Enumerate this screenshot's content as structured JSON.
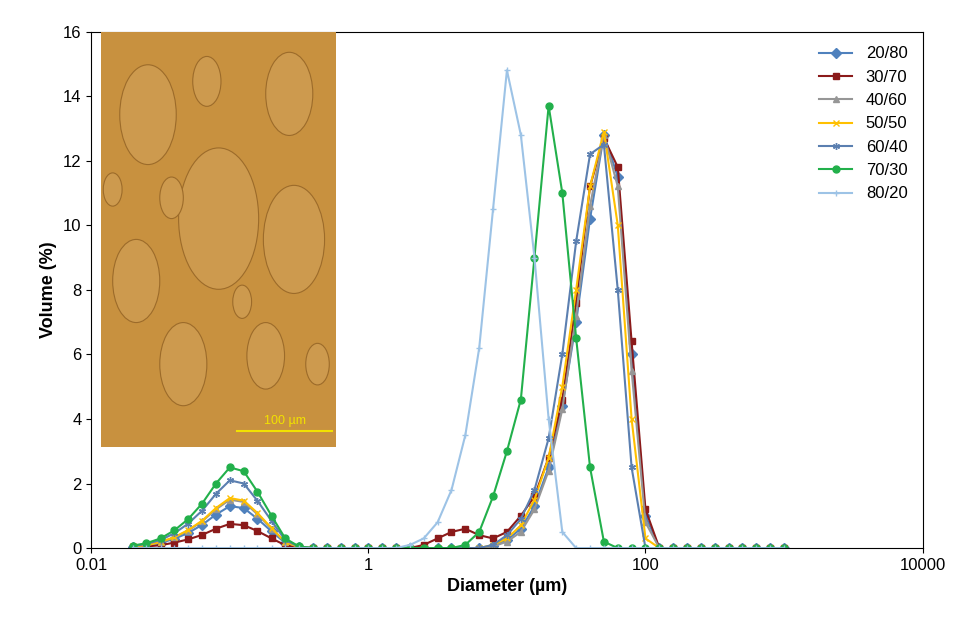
{
  "chart_data": {
    "type": "line",
    "x_label": "Diameter (µm)",
    "y_label": "Volume (%)",
    "annotations": [
      "100 µm"
    ],
    "log": "x",
    "grid": false,
    "legend": "upper right",
    "xlim": [
      0.01,
      10000
    ],
    "xticks": [
      0.01,
      1,
      100,
      10000
    ],
    "ylim": [
      0,
      16
    ],
    "yticks": [
      0,
      2,
      4,
      6,
      8,
      10,
      12,
      14,
      16
    ],
    "x": [
      0.02,
      0.025,
      0.0316,
      0.0398,
      0.0501,
      0.0631,
      0.0794,
      0.1,
      0.126,
      0.158,
      0.2,
      0.251,
      0.316,
      0.398,
      0.501,
      0.631,
      0.794,
      1,
      1.26,
      1.58,
      2,
      2.51,
      3.16,
      3.98,
      5.01,
      6.31,
      7.94,
      10,
      12.6,
      15.8,
      20,
      25.1,
      31.6,
      39.8,
      50.1,
      63.1,
      79.4,
      100,
      126,
      158,
      200,
      251,
      316,
      398,
      501,
      631,
      794,
      1000
    ],
    "series": [
      {
        "name": "20/80",
        "color": "#4F81BD",
        "marker": "diamond",
        "values": [
          0.04,
          0.08,
          0.16,
          0.29,
          0.47,
          0.72,
          1.04,
          1.3,
          1.24,
          0.91,
          0.52,
          0.16,
          0.03,
          0,
          0,
          0,
          0,
          0,
          0,
          0,
          0,
          0,
          0,
          0,
          0,
          0,
          0.05,
          0.25,
          0.6,
          1.3,
          2.5,
          4.4,
          7.0,
          10.2,
          12.8,
          11.5,
          6.0,
          1.0,
          0,
          0,
          0,
          0,
          0,
          0,
          0,
          0,
          0,
          0
        ]
      },
      {
        "name": "30/70",
        "color": "#8B1A1A",
        "marker": "square",
        "values": [
          0.02,
          0.05,
          0.09,
          0.17,
          0.27,
          0.41,
          0.6,
          0.75,
          0.71,
          0.53,
          0.3,
          0.09,
          0.02,
          0,
          0,
          0,
          0,
          0,
          0,
          0,
          0,
          0.1,
          0.3,
          0.5,
          0.6,
          0.4,
          0.3,
          0.5,
          1.0,
          1.6,
          2.8,
          4.6,
          7.6,
          11.2,
          12.7,
          11.8,
          6.4,
          1.2,
          0,
          0,
          0,
          0,
          0,
          0,
          0,
          0,
          0,
          0
        ]
      },
      {
        "name": "40/60",
        "color": "#969696",
        "marker": "triangle",
        "values": [
          0.05,
          0.09,
          0.18,
          0.33,
          0.54,
          0.83,
          1.2,
          1.5,
          1.43,
          1.05,
          0.6,
          0.18,
          0.03,
          0,
          0,
          0,
          0,
          0,
          0,
          0,
          0,
          0,
          0,
          0,
          0,
          0,
          0.05,
          0.2,
          0.5,
          1.2,
          2.4,
          4.3,
          7.2,
          10.6,
          12.8,
          11.2,
          5.5,
          0.8,
          0,
          0,
          0,
          0,
          0,
          0,
          0,
          0,
          0,
          0
        ]
      },
      {
        "name": "50/50",
        "color": "#FFC000",
        "marker": "x",
        "values": [
          0.05,
          0.09,
          0.19,
          0.34,
          0.56,
          0.85,
          1.24,
          1.55,
          1.47,
          1.09,
          0.62,
          0.19,
          0.03,
          0,
          0,
          0,
          0,
          0,
          0,
          0,
          0,
          0,
          0,
          0,
          0,
          0,
          0.1,
          0.3,
          0.7,
          1.5,
          2.8,
          5.0,
          8.0,
          11.2,
          12.9,
          10.0,
          4.0,
          0.3,
          0,
          0,
          0,
          0,
          0,
          0,
          0,
          0,
          0,
          0
        ]
      },
      {
        "name": "60/40",
        "color": "#5B7FB0",
        "marker": "asterisk",
        "values": [
          0.06,
          0.13,
          0.25,
          0.46,
          0.76,
          1.16,
          1.68,
          2.1,
          2.0,
          1.47,
          0.84,
          0.25,
          0.04,
          0,
          0,
          0,
          0,
          0,
          0,
          0,
          0,
          0,
          0,
          0,
          0,
          0,
          0.1,
          0.4,
          0.9,
          1.8,
          3.4,
          6.0,
          9.5,
          12.2,
          12.5,
          8.0,
          2.5,
          0.0,
          0,
          0,
          0,
          0,
          0,
          0,
          0,
          0,
          0,
          0
        ]
      },
      {
        "name": "70/30",
        "color": "#22B04B",
        "marker": "circle",
        "values": [
          0.08,
          0.15,
          0.3,
          0.55,
          0.9,
          1.38,
          2.0,
          2.5,
          2.38,
          1.75,
          1.0,
          0.3,
          0.05,
          0,
          0,
          0,
          0,
          0,
          0,
          0,
          0,
          0,
          0,
          0,
          0.1,
          0.5,
          1.6,
          3.0,
          4.6,
          9.0,
          13.7,
          11.0,
          6.5,
          2.5,
          0.2,
          0.0,
          0,
          0,
          0,
          0,
          0,
          0,
          0,
          0,
          0,
          0,
          0,
          0
        ]
      },
      {
        "name": "80/20",
        "color": "#9DC3E6",
        "marker": "plus",
        "values": [
          0,
          0,
          0,
          0,
          0,
          0,
          0,
          0,
          0,
          0,
          0,
          0,
          0,
          0,
          0,
          0,
          0,
          0,
          0,
          0,
          0.1,
          0.3,
          0.8,
          1.8,
          3.5,
          6.2,
          10.5,
          14.8,
          12.8,
          9.0,
          4.0,
          0.5,
          0.0,
          0,
          0,
          0,
          0,
          0,
          0,
          0,
          0,
          0,
          0,
          0,
          0,
          0,
          0,
          0
        ]
      }
    ]
  }
}
